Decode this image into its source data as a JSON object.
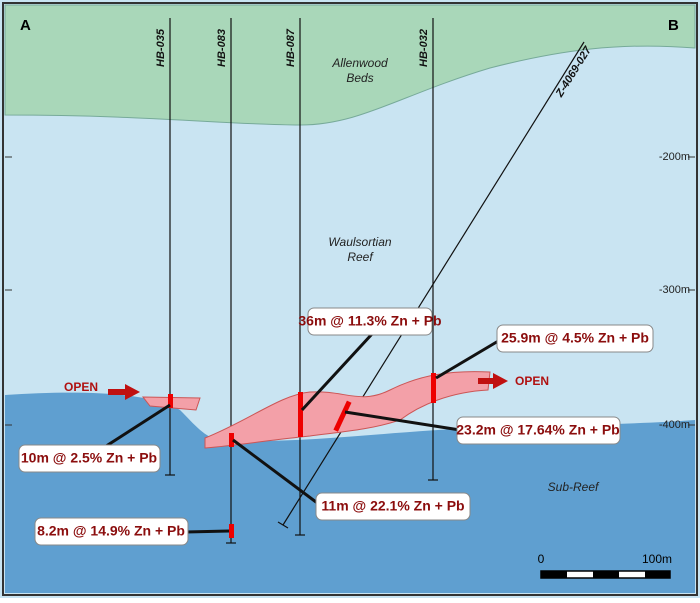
{
  "section": {
    "start_label": "A",
    "end_label": "B"
  },
  "formations": {
    "upper": [
      "Allenwood",
      "Beds"
    ],
    "middle": [
      "Waulsortian",
      "Reef"
    ],
    "lower": "Sub-Reef"
  },
  "drill_holes": [
    "HB-035",
    "HB-083",
    "HB-087",
    "HB-032",
    "Z-4069-027"
  ],
  "depth_labels": [
    "-200m",
    "-300m",
    "-400m"
  ],
  "intercepts": [
    "36m @ 11.3% Zn + Pb",
    "25.9m @ 4.5% Zn + Pb",
    "23.2m @ 17.64% Zn + Pb",
    "10m @ 2.5% Zn + Pb",
    "11m @ 22.1% Zn + Pb",
    "8.2m @ 14.9% Zn + Pb"
  ],
  "open_labels": [
    "OPEN",
    "OPEN"
  ],
  "scale": {
    "start": "0",
    "end": "100m"
  }
}
